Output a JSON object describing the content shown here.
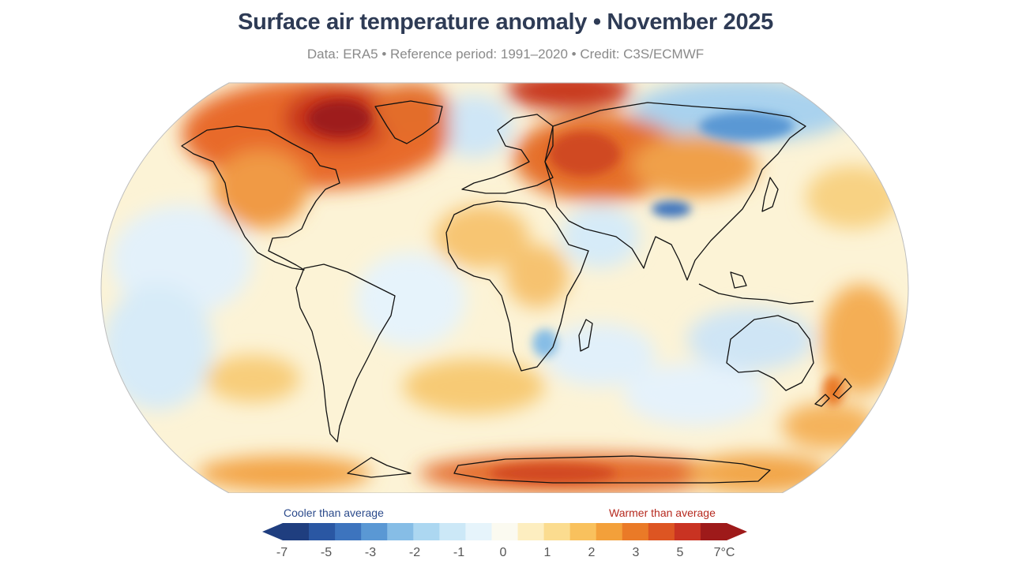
{
  "header": {
    "title": "Surface air temperature anomaly • November 2025",
    "subtitle": "Data: ERA5 • Reference period: 1991–2020 • Credit: C3S/ECMWF"
  },
  "legend": {
    "cool_label": "Cooler than average",
    "warm_label": "Warmer than average",
    "colors": [
      "#1f3e7f",
      "#2a57a3",
      "#3d74be",
      "#5a98d4",
      "#86bde6",
      "#acd7f1",
      "#cce8f7",
      "#e6f4fb",
      "#fbfaf0",
      "#fdeec0",
      "#fbdc8f",
      "#f9c15d",
      "#f3a03a",
      "#ea7a27",
      "#dd5522",
      "#c93322",
      "#9e1a1a"
    ],
    "ticks": [
      "-7",
      "-5",
      "-3",
      "-2",
      "-1",
      "0",
      "1",
      "2",
      "3",
      "5",
      "7°C"
    ]
  }
}
